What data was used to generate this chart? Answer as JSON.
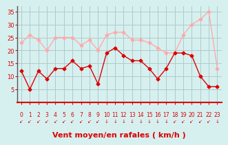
{
  "x": [
    0,
    1,
    2,
    3,
    4,
    5,
    6,
    7,
    8,
    9,
    10,
    11,
    12,
    13,
    14,
    15,
    16,
    17,
    18,
    19,
    20,
    21,
    22,
    23
  ],
  "y_mean": [
    12,
    5,
    12,
    9,
    13,
    13,
    16,
    13,
    14,
    7,
    19,
    21,
    18,
    16,
    16,
    13,
    9,
    13,
    19,
    19,
    18,
    10,
    6,
    6
  ],
  "y_gust": [
    23,
    26,
    24,
    20,
    25,
    25,
    25,
    22,
    24,
    20,
    26,
    27,
    27,
    24,
    24,
    23,
    21,
    19,
    19,
    26,
    30,
    32,
    35,
    13
  ],
  "bg_color": "#d6f0f0",
  "grid_color": "#b0c8c8",
  "line_mean_color": "#dd0000",
  "line_gust_color": "#ffaaaa",
  "xlabel": "Vent moyen/en rafales ( km/h )",
  "xlabel_color": "#dd0000",
  "tick_color": "#dd0000",
  "arrow_color": "#dd0000",
  "ylim": [
    0,
    37
  ],
  "yticks": [
    5,
    10,
    15,
    20,
    25,
    30,
    35
  ],
  "tick_fontsize": 6,
  "xlabel_fontsize": 8,
  "left_color": "#555555",
  "bottom_color": "#dd0000",
  "arrows": [
    "↙",
    "↙",
    "↙",
    "↙",
    "↙",
    "↙",
    "↙",
    "↙",
    "↙",
    "↙",
    "↓",
    "↓",
    "↓",
    "↓",
    "↓",
    "↓",
    "↓",
    "↓",
    "↙",
    "↙",
    "↙",
    "↙",
    "↙",
    "↓"
  ]
}
